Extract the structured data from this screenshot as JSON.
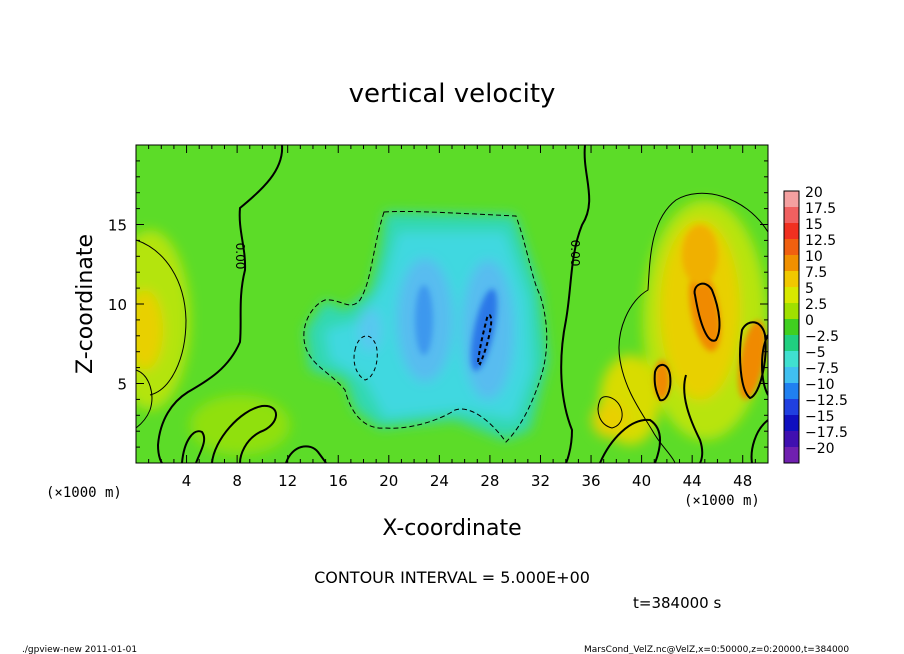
{
  "chart_data": {
    "type": "heatmap",
    "title": "vertical velocity",
    "xlabel": "X-coordinate",
    "ylabel": "Z-coordinate",
    "x_unit": "(×1000 m)",
    "x_unit_right": "(×1000 m)",
    "xlim": [
      0,
      50
    ],
    "ylim": [
      0,
      20
    ],
    "x_ticks": [
      "4",
      "8",
      "12",
      "16",
      "20",
      "24",
      "28",
      "32",
      "36",
      "40",
      "44",
      "48"
    ],
    "y_ticks": [
      "5",
      "10",
      "15"
    ],
    "contour_interval_text": "CONTOUR INTERVAL = 5.000E+00",
    "contour_labels": [
      "0.00",
      "0.00"
    ],
    "time_text": "t=384000 s",
    "footer_left": "./gpview-new  2011-01-01",
    "footer_right": "MarsCond_VelZ.nc@VelZ,x=0:50000,z=0:20000,t=384000",
    "colorbar": {
      "levels": [
        "20",
        "17.5",
        "15",
        "12.5",
        "10",
        "7.5",
        "5",
        "2.5",
        "0",
        "-2.5",
        "-5",
        "-7.5",
        "-10",
        "-12.5",
        "-15",
        "-17.5",
        "-20"
      ],
      "colors": [
        "#f4a0a0",
        "#f06060",
        "#f03020",
        "#f06010",
        "#f09000",
        "#f0c800",
        "#d8e800",
        "#a0e000",
        "#40d020",
        "#20d080",
        "#40e0d0",
        "#40c0f0",
        "#2080f0",
        "#2040e0",
        "#1010c0",
        "#4010b0",
        "#7020b0"
      ]
    }
  }
}
